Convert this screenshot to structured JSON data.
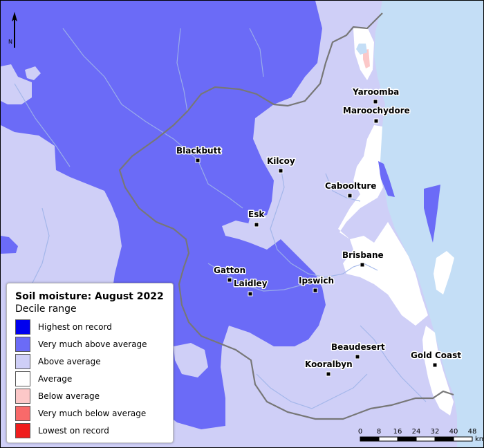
{
  "legend": {
    "title": "Soil moisture: August 2022",
    "subtitle": "Decile range",
    "items": [
      {
        "label": "Highest on record",
        "color": "#0000ee"
      },
      {
        "label": "Very much above average",
        "color": "#6b6bf7"
      },
      {
        "label": "Above average",
        "color": "#cfcff7"
      },
      {
        "label": "Average",
        "color": "#ffffff"
      },
      {
        "label": "Below average",
        "color": "#fcc8c8"
      },
      {
        "label": "Very much below average",
        "color": "#f86a6a"
      },
      {
        "label": "Lowest on record",
        "color": "#ef1d1d"
      }
    ]
  },
  "places": [
    {
      "id": "yaroomba",
      "name": "Yaroomba"
    },
    {
      "id": "maroochydore",
      "name": "Maroochydore"
    },
    {
      "id": "blackbutt",
      "name": "Blackbutt"
    },
    {
      "id": "kilcoy",
      "name": "Kilcoy"
    },
    {
      "id": "caboolture",
      "name": "Caboolture"
    },
    {
      "id": "esk",
      "name": "Esk"
    },
    {
      "id": "brisbane",
      "name": "Brisbane"
    },
    {
      "id": "gatton",
      "name": "Gatton"
    },
    {
      "id": "laidley",
      "name": "Laidley"
    },
    {
      "id": "ipswich",
      "name": "Ipswich"
    },
    {
      "id": "beaudesert",
      "name": "Beaudesert"
    },
    {
      "id": "gold_coast",
      "name": "Gold Coast"
    },
    {
      "id": "kooralbyn",
      "name": "Kooralbyn"
    }
  ],
  "north_arrow": {
    "label": "N",
    "icon": "north-arrow-icon"
  },
  "scale_bar": {
    "ticks": [
      "0",
      "8",
      "16",
      "24",
      "32",
      "40",
      "48"
    ],
    "unit": "km"
  },
  "colors": {
    "ocean": "#c4def6",
    "very_much_above": "#6b6bf7",
    "above": "#cfcff7",
    "average": "#ffffff",
    "below": "#fcc8c8",
    "very_much_below": "#f86a6a",
    "rivers": "#9fb4e8",
    "boundary": "#777777"
  }
}
